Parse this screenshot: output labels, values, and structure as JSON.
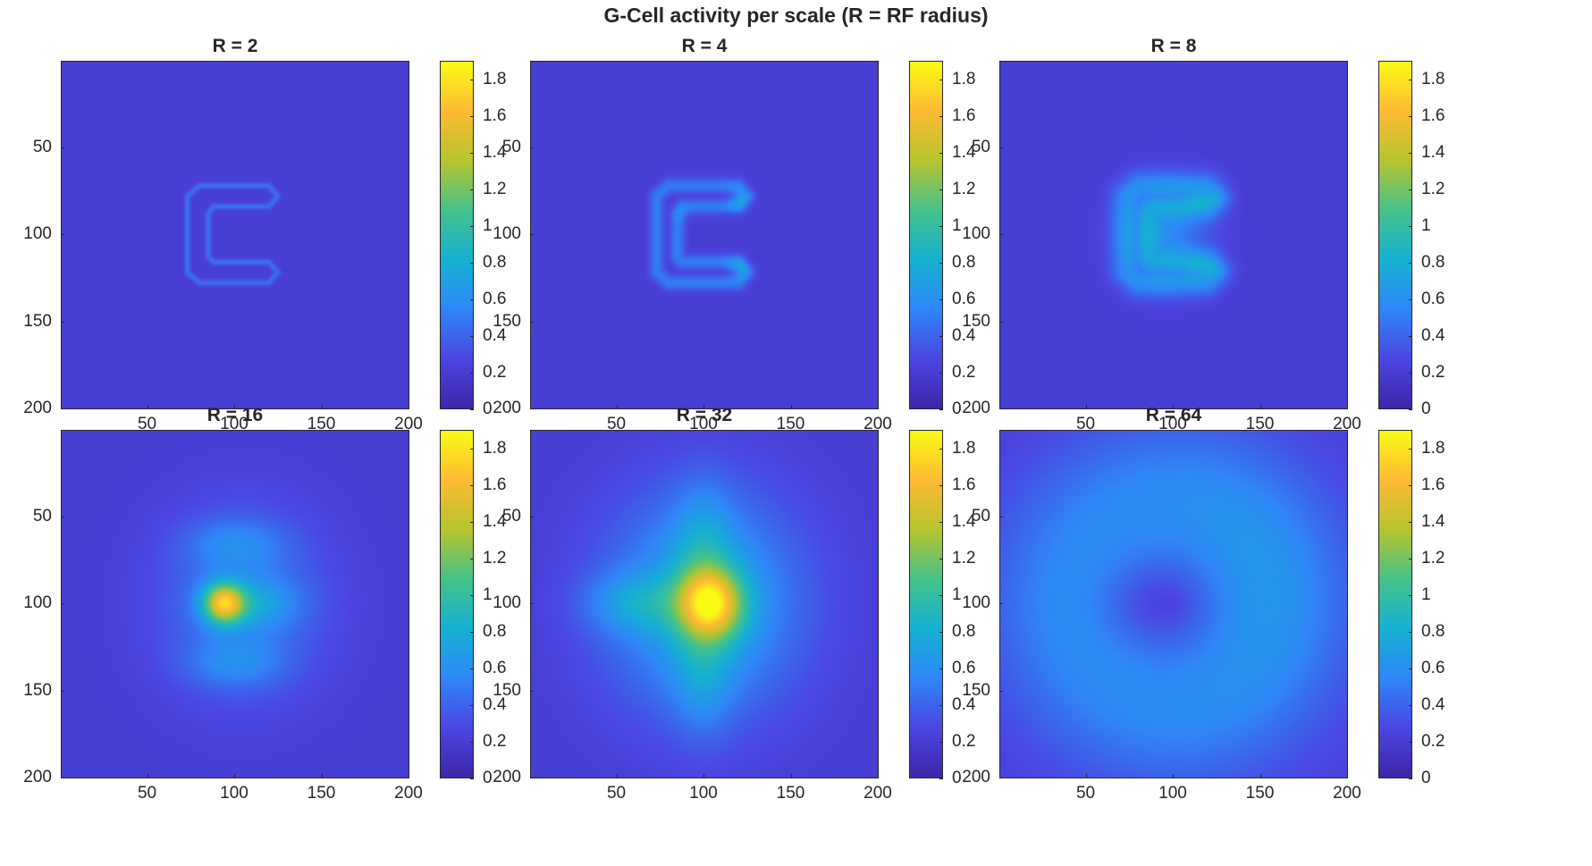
{
  "title": "G-Cell activity per scale (R = RF radius)",
  "colormap": [
    "#3e26a8",
    "#4a46e2",
    "#2e87f7",
    "#15b1d2",
    "#45c28a",
    "#b5c42f",
    "#fdba33",
    "#f9fb15"
  ],
  "colorbar": {
    "ticks": [
      "0",
      "0.2",
      "0.4",
      "0.6",
      "0.8",
      "1",
      "1.2",
      "1.4",
      "1.6",
      "1.8"
    ],
    "range": [
      0,
      1.9
    ]
  },
  "axes": {
    "xticks": [
      "50",
      "100",
      "150",
      "200"
    ],
    "yticks": [
      "50",
      "100",
      "150",
      "200"
    ],
    "xlim": [
      1,
      200
    ],
    "ylim": [
      1,
      200
    ]
  },
  "chart_data": [
    {
      "type": "heatmap",
      "title": "R = 2",
      "peak_value": 0.45,
      "description_value": "letter outline at 0.45"
    },
    {
      "type": "heatmap",
      "title": "R = 4",
      "peak_value": 0.75
    },
    {
      "type": "heatmap",
      "title": "R = 8",
      "peak_value": 0.9
    },
    {
      "type": "heatmap",
      "title": "R = 16",
      "peak_value": 1.6
    },
    {
      "type": "heatmap",
      "title": "R = 32",
      "peak_value": 1.85
    },
    {
      "type": "heatmap",
      "title": "R = 64",
      "peak_value": 0.55
    }
  ]
}
